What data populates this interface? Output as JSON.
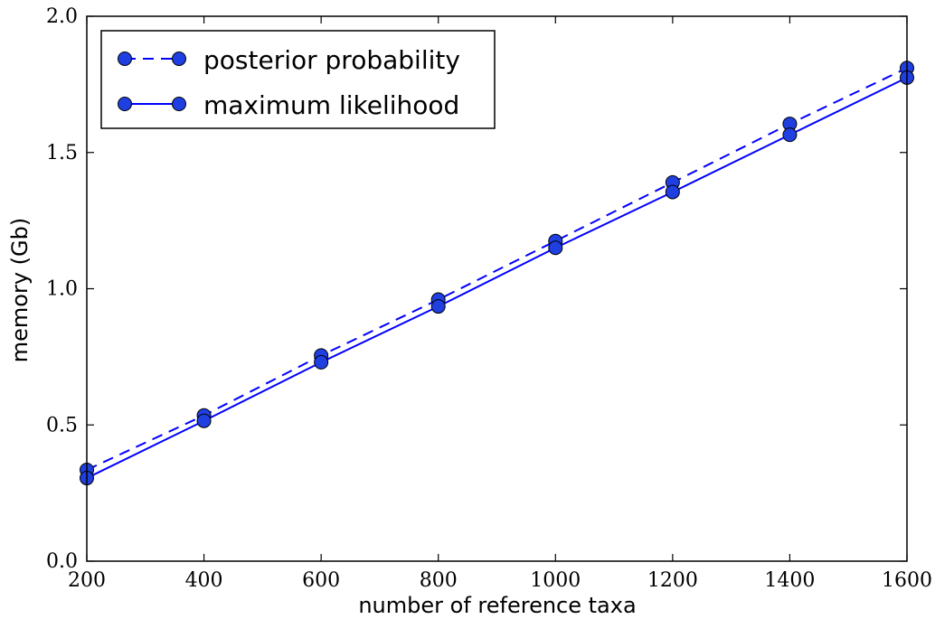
{
  "chart_data": {
    "type": "line",
    "title": "",
    "xlabel": "number of reference taxa",
    "ylabel": "memory (Gb)",
    "xlim": [
      200,
      1600
    ],
    "ylim": [
      0.0,
      2.0
    ],
    "x_ticks": [
      200,
      400,
      600,
      800,
      1000,
      1200,
      1400,
      1600
    ],
    "x_tick_labels": [
      "200",
      "400",
      "600",
      "800",
      "1000",
      "1200",
      "1400",
      "1600"
    ],
    "y_ticks": [
      0.0,
      0.5,
      1.0,
      1.5,
      2.0
    ],
    "y_tick_labels": [
      "0.0",
      "0.5",
      "1.0",
      "1.5",
      "2.0"
    ],
    "x": [
      200,
      400,
      600,
      800,
      1000,
      1200,
      1400,
      1600
    ],
    "series": [
      {
        "name": "posterior probability",
        "line_style": "dashed",
        "color": "#0000ff",
        "marker_color": "#1f3fe0",
        "values": [
          0.335,
          0.535,
          0.755,
          0.96,
          1.175,
          1.39,
          1.605,
          1.81
        ]
      },
      {
        "name": "maximum likelihood",
        "line_style": "solid",
        "color": "#0000ff",
        "marker_color": "#1f3fe0",
        "values": [
          0.305,
          0.515,
          0.73,
          0.935,
          1.15,
          1.355,
          1.565,
          1.775
        ]
      }
    ],
    "legend_position": "top-left",
    "grid": false
  }
}
